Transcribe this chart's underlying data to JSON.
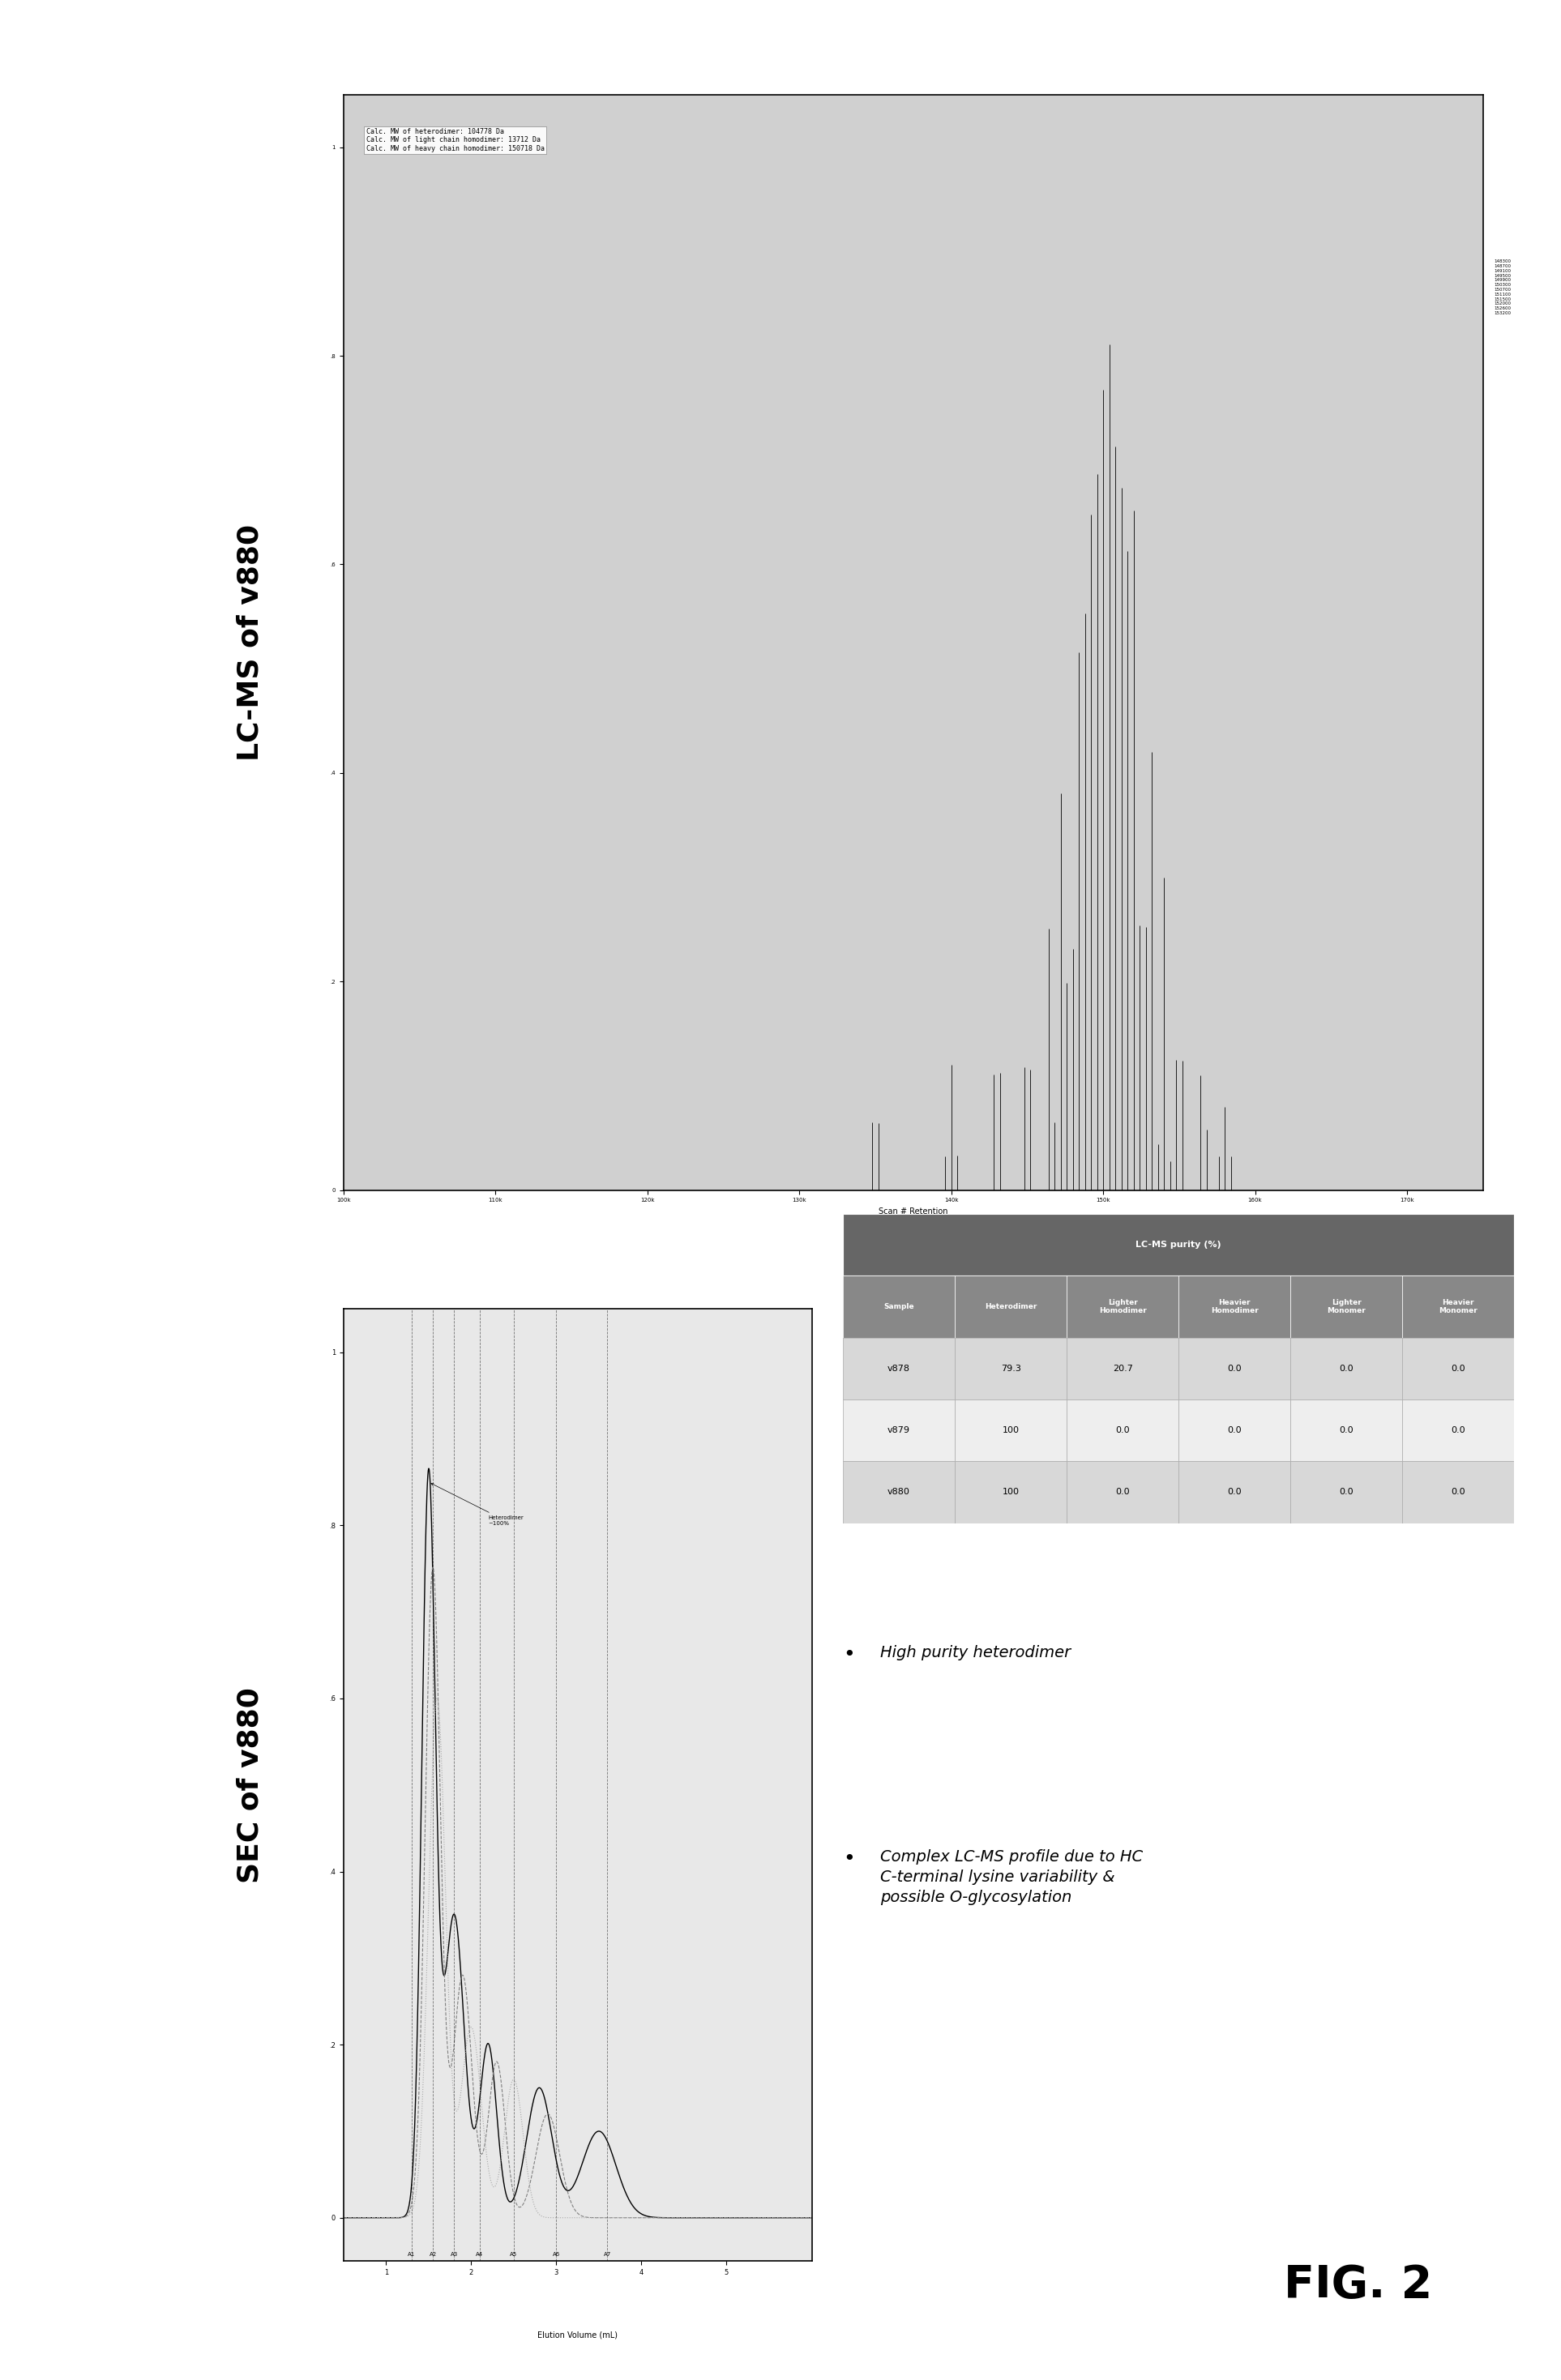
{
  "title_sec": "SEC of v880",
  "title_lcms": "LC-MS of v880",
  "fig_label": "FIG. 2",
  "table_subheader": "LC-MS purity (%)",
  "table_col_headers": [
    "Sample",
    "Heterodimer",
    "Lighter\nHomodimer",
    "Heavier\nHomodimer",
    "Lighter\nMonomer",
    "Heavier\nMonomer"
  ],
  "table_rows": [
    [
      "v878",
      "79.3",
      "20.7",
      "0.0",
      "0.0",
      "0.0"
    ],
    [
      "v879",
      "100",
      "0.0",
      "0.0",
      "0.0",
      "0.0"
    ],
    [
      "v880",
      "100",
      "0.0",
      "0.0",
      "0.0",
      "0.0"
    ]
  ],
  "bullet1": "High purity heterodimer",
  "bullet2_line1": "Complex LC-MS profile due to HC",
  "bullet2_line2": "C-terminal lysine variability &",
  "bullet2_line3": "possible O-glycosylation",
  "background_color": "#ffffff",
  "sec_bg": "#e8e8e8",
  "lcms_bg": "#d0d0d0",
  "table_header_dark": "#666666",
  "table_header_mid": "#888888",
  "table_row1_bg": "#d8d8d8",
  "table_row2_bg": "#eeeeee",
  "table_row3_bg": "#d8d8d8",
  "lcms_annot": "Calc. MW of heterodimer: 104778 Da\nCalc. MW of light chain homodimer: 13712 Da\nCalc. MW of heavy chain homodimer: 150718 Da",
  "scan_label": "Scan # Retention"
}
